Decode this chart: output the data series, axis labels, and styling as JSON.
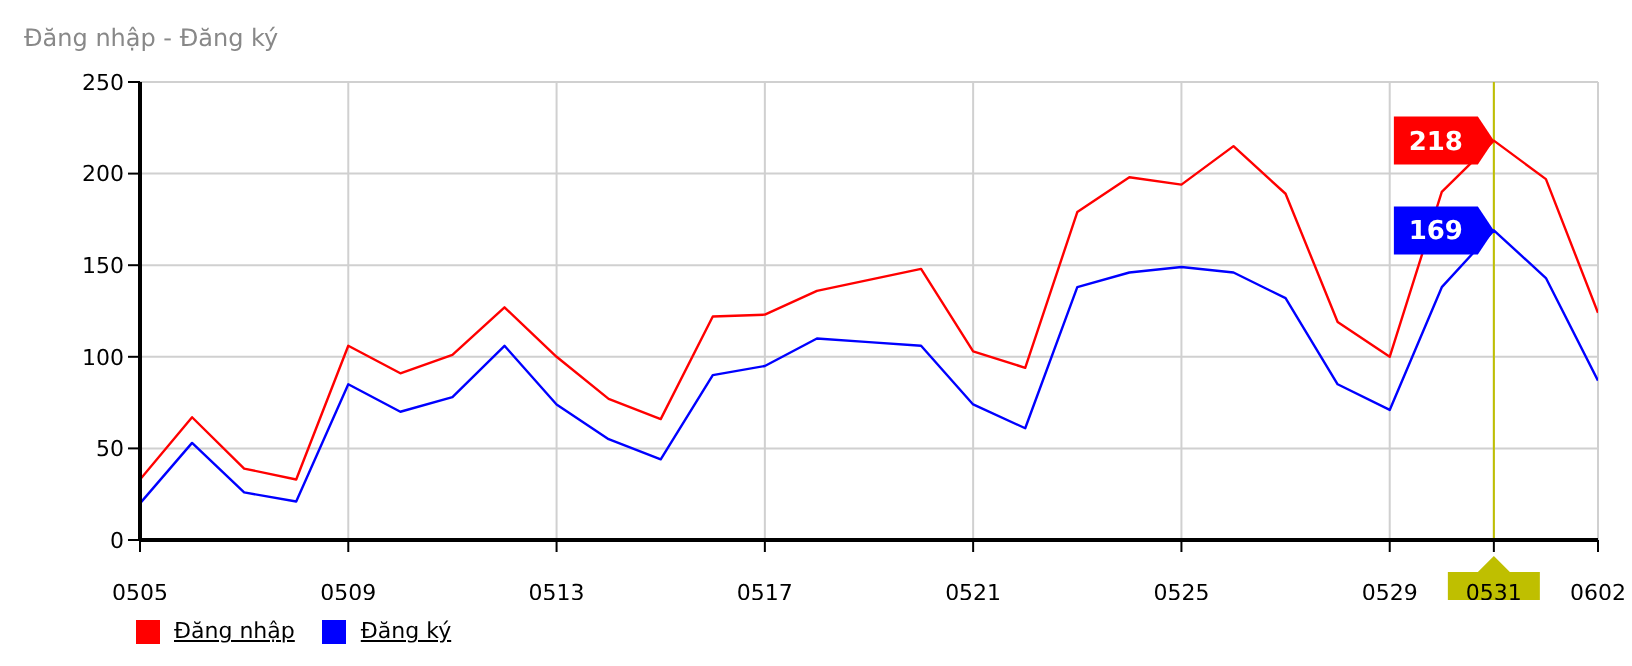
{
  "chart_data": {
    "type": "line",
    "title": "Đăng nhập - Đăng ký",
    "categories": [
      "0505",
      null,
      null,
      null,
      "0509",
      null,
      null,
      null,
      "0513",
      null,
      null,
      null,
      "0517",
      null,
      null,
      null,
      "0521",
      null,
      null,
      null,
      "0525",
      null,
      null,
      null,
      "0529",
      null,
      "0531",
      null,
      "0602"
    ],
    "series": [
      {
        "name": "Đăng nhập",
        "color": "#ff0000",
        "values": [
          33,
          67,
          39,
          33,
          106,
          91,
          101,
          127,
          100,
          77,
          66,
          122,
          123,
          136,
          142,
          148,
          103,
          94,
          179,
          198,
          194,
          215,
          189,
          119,
          100,
          190,
          218,
          197,
          124
        ]
      },
      {
        "name": "Đăng ký",
        "color": "#0000ff",
        "values": [
          20,
          53,
          26,
          21,
          85,
          70,
          78,
          106,
          74,
          55,
          44,
          90,
          95,
          110,
          108,
          106,
          74,
          61,
          138,
          146,
          149,
          146,
          132,
          85,
          71,
          138,
          169,
          143,
          87
        ]
      }
    ],
    "ylim": [
      0,
      250
    ],
    "yticks": [
      0,
      50,
      100,
      150,
      200,
      250
    ],
    "grid": true,
    "legend": "bottom left",
    "marker": "none",
    "ref_lines": [
      {
        "axis": "x",
        "value": "0531",
        "color": "#bfbf00"
      }
    ],
    "annotations": [
      {
        "text": "218",
        "x": "0531",
        "y": 218
      },
      {
        "text": "169",
        "x": "0531",
        "y": 169
      }
    ]
  }
}
